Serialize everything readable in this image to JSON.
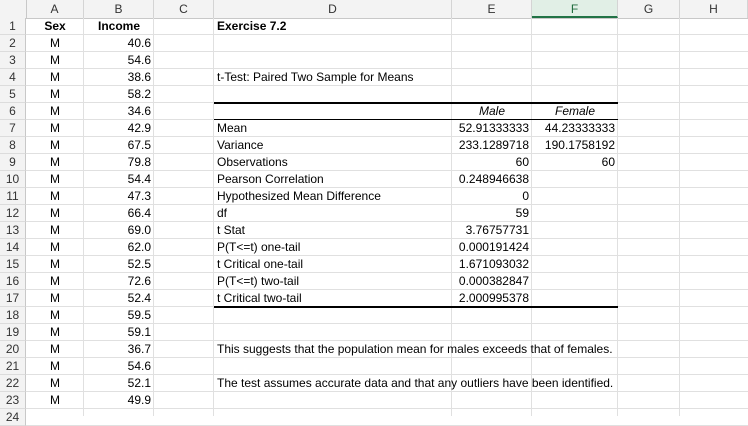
{
  "columns": [
    "A",
    "B",
    "C",
    "D",
    "E",
    "F",
    "G",
    "H"
  ],
  "selected_column": "F",
  "rows": [
    "1",
    "2",
    "3",
    "4",
    "5",
    "6",
    "7",
    "8",
    "9",
    "10",
    "11",
    "12",
    "13",
    "14",
    "15",
    "16",
    "17",
    "18",
    "19",
    "20",
    "21",
    "22",
    "23",
    "24"
  ],
  "sex_header": "Sex",
  "income_header": "Income",
  "data": [
    {
      "sex": "M",
      "income": "40.6"
    },
    {
      "sex": "M",
      "income": "54.6"
    },
    {
      "sex": "M",
      "income": "38.6"
    },
    {
      "sex": "M",
      "income": "58.2"
    },
    {
      "sex": "M",
      "income": "34.6"
    },
    {
      "sex": "M",
      "income": "42.9"
    },
    {
      "sex": "M",
      "income": "67.5"
    },
    {
      "sex": "M",
      "income": "79.8"
    },
    {
      "sex": "M",
      "income": "54.4"
    },
    {
      "sex": "M",
      "income": "47.3"
    },
    {
      "sex": "M",
      "income": "66.4"
    },
    {
      "sex": "M",
      "income": "69.0"
    },
    {
      "sex": "M",
      "income": "62.0"
    },
    {
      "sex": "M",
      "income": "52.5"
    },
    {
      "sex": "M",
      "income": "72.6"
    },
    {
      "sex": "M",
      "income": "52.4"
    },
    {
      "sex": "M",
      "income": "59.5"
    },
    {
      "sex": "M",
      "income": "59.1"
    },
    {
      "sex": "M",
      "income": "36.7"
    },
    {
      "sex": "M",
      "income": "54.6"
    },
    {
      "sex": "M",
      "income": "52.1"
    },
    {
      "sex": "M",
      "income": "49.9"
    }
  ],
  "title": "Exercise 7.2",
  "test_title": "t-Test: Paired Two Sample for Means",
  "col_male": "Male",
  "col_female": "Female",
  "stats": [
    {
      "label": "Mean",
      "male": "52.91333333",
      "female": "44.23333333"
    },
    {
      "label": "Variance",
      "male": "233.1289718",
      "female": "190.1758192"
    },
    {
      "label": "Observations",
      "male": "60",
      "female": "60"
    },
    {
      "label": "Pearson Correlation",
      "male": "0.248946638",
      "female": ""
    },
    {
      "label": "Hypothesized Mean Difference",
      "male": "0",
      "female": ""
    },
    {
      "label": "df",
      "male": "59",
      "female": ""
    },
    {
      "label": "t Stat",
      "male": "3.76757731",
      "female": ""
    },
    {
      "label": "P(T<=t) one-tail",
      "male": "0.000191424",
      "female": ""
    },
    {
      "label": "t Critical one-tail",
      "male": "1.671093032",
      "female": ""
    },
    {
      "label": "P(T<=t) two-tail",
      "male": "0.000382847",
      "female": ""
    },
    {
      "label": "t Critical two-tail",
      "male": "2.000995378",
      "female": ""
    }
  ],
  "conclusion": "This suggests that the population mean for males exceeds that of females.",
  "assumption": "The test assumes accurate data and that any outliers have been identified."
}
